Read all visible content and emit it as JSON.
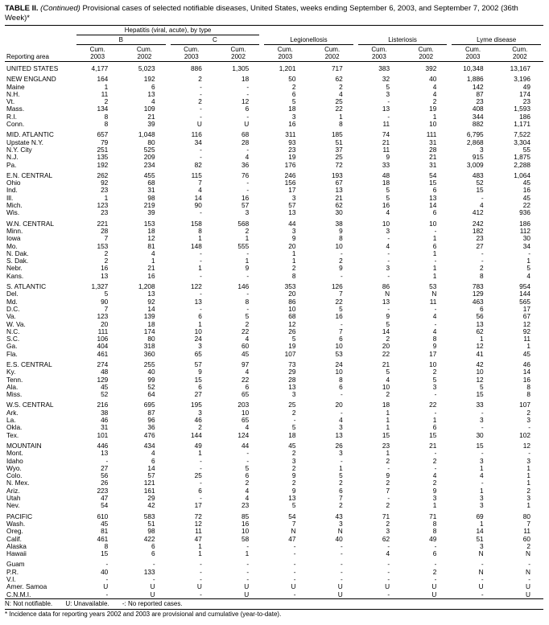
{
  "title": {
    "prefix": "TABLE II.",
    "continued": " (Continued)",
    "rest": " Provisional cases of selected notifiable diseases, United States, weeks ending September 6, 2003, and September 7, 2002 (36th Week)*"
  },
  "table": {
    "reporting_area_label": "Reporting area",
    "groups": {
      "hepatitis": "Hepatitis (viral, acute), by type",
      "hep_b": "B",
      "hep_c": "C",
      "legionellosis": "Legionellosis",
      "listeriosis": "Listeriosis",
      "lyme": "Lyme disease"
    },
    "columns": [
      {
        "line1": "Cum.",
        "line2": "2003"
      },
      {
        "line1": "Cum.",
        "line2": "2002"
      },
      {
        "line1": "Cum.",
        "line2": "2003"
      },
      {
        "line1": "Cum.",
        "line2": "2002"
      },
      {
        "line1": "Cum.",
        "line2": "2003"
      },
      {
        "line1": "Cum.",
        "line2": "2002"
      },
      {
        "line1": "Cum.",
        "line2": "2003"
      },
      {
        "line1": "Cum.",
        "line2": "2002"
      },
      {
        "line1": "Cum.",
        "line2": "2003"
      },
      {
        "line1": "Cum.",
        "line2": "2002"
      }
    ],
    "rows": [
      {
        "area": "UNITED STATES",
        "gap": true,
        "values": [
          "4,177",
          "5,023",
          "886",
          "1,305",
          "1,201",
          "717",
          "383",
          "392",
          "10,348",
          "13,167"
        ]
      },
      {
        "area": "NEW ENGLAND",
        "gap": true,
        "values": [
          "164",
          "192",
          "2",
          "18",
          "50",
          "62",
          "32",
          "40",
          "1,886",
          "3,196"
        ]
      },
      {
        "area": "Maine",
        "values": [
          "1",
          "6",
          "-",
          "-",
          "2",
          "2",
          "5",
          "4",
          "142",
          "49"
        ]
      },
      {
        "area": "N.H.",
        "values": [
          "11",
          "13",
          "-",
          "-",
          "6",
          "4",
          "3",
          "4",
          "87",
          "174"
        ]
      },
      {
        "area": "Vt.",
        "values": [
          "2",
          "4",
          "2",
          "12",
          "5",
          "25",
          "-",
          "2",
          "23",
          "23"
        ]
      },
      {
        "area": "Mass.",
        "values": [
          "134",
          "109",
          "-",
          "6",
          "18",
          "22",
          "13",
          "19",
          "408",
          "1,593"
        ]
      },
      {
        "area": "R.I.",
        "values": [
          "8",
          "21",
          "-",
          "-",
          "3",
          "1",
          "-",
          "1",
          "344",
          "186"
        ]
      },
      {
        "area": "Conn.",
        "values": [
          "8",
          "39",
          "U",
          "U",
          "16",
          "8",
          "11",
          "10",
          "882",
          "1,171"
        ]
      },
      {
        "area": "MID. ATLANTIC",
        "gap": true,
        "values": [
          "657",
          "1,048",
          "116",
          "68",
          "311",
          "185",
          "74",
          "111",
          "6,795",
          "7,522"
        ]
      },
      {
        "area": "Upstate N.Y.",
        "values": [
          "79",
          "80",
          "34",
          "28",
          "93",
          "51",
          "21",
          "31",
          "2,868",
          "3,304"
        ]
      },
      {
        "area": "N.Y. City",
        "values": [
          "251",
          "525",
          "-",
          "-",
          "23",
          "37",
          "11",
          "28",
          "3",
          "55"
        ]
      },
      {
        "area": "N.J.",
        "values": [
          "135",
          "209",
          "-",
          "4",
          "19",
          "25",
          "9",
          "21",
          "915",
          "1,875"
        ]
      },
      {
        "area": "Pa.",
        "values": [
          "192",
          "234",
          "82",
          "36",
          "176",
          "72",
          "33",
          "31",
          "3,009",
          "2,288"
        ]
      },
      {
        "area": "E.N. CENTRAL",
        "gap": true,
        "values": [
          "262",
          "455",
          "115",
          "76",
          "246",
          "193",
          "48",
          "54",
          "483",
          "1,064"
        ]
      },
      {
        "area": "Ohio",
        "values": [
          "92",
          "68",
          "7",
          "-",
          "156",
          "67",
          "18",
          "15",
          "52",
          "45"
        ]
      },
      {
        "area": "Ind.",
        "values": [
          "23",
          "31",
          "4",
          "-",
          "17",
          "13",
          "5",
          "6",
          "15",
          "16"
        ]
      },
      {
        "area": "Ill.",
        "values": [
          "1",
          "98",
          "14",
          "16",
          "3",
          "21",
          "5",
          "13",
          "-",
          "45"
        ]
      },
      {
        "area": "Mich.",
        "values": [
          "123",
          "219",
          "90",
          "57",
          "57",
          "62",
          "16",
          "14",
          "4",
          "22"
        ]
      },
      {
        "area": "Wis.",
        "values": [
          "23",
          "39",
          "-",
          "3",
          "13",
          "30",
          "4",
          "6",
          "412",
          "936"
        ]
      },
      {
        "area": "W.N. CENTRAL",
        "gap": true,
        "values": [
          "221",
          "153",
          "158",
          "568",
          "44",
          "38",
          "10",
          "10",
          "242",
          "186"
        ]
      },
      {
        "area": "Minn.",
        "values": [
          "28",
          "18",
          "8",
          "2",
          "3",
          "9",
          "3",
          "-",
          "182",
          "112"
        ]
      },
      {
        "area": "Iowa",
        "values": [
          "7",
          "12",
          "1",
          "1",
          "9",
          "8",
          "-",
          "1",
          "23",
          "30"
        ]
      },
      {
        "area": "Mo.",
        "values": [
          "153",
          "81",
          "148",
          "555",
          "20",
          "10",
          "4",
          "6",
          "27",
          "34"
        ]
      },
      {
        "area": "N. Dak.",
        "values": [
          "2",
          "4",
          "-",
          "-",
          "1",
          "-",
          "-",
          "1",
          "-",
          "-"
        ]
      },
      {
        "area": "S. Dak.",
        "values": [
          "2",
          "1",
          "-",
          "1",
          "1",
          "2",
          "-",
          "-",
          "-",
          "1"
        ]
      },
      {
        "area": "Nebr.",
        "values": [
          "16",
          "21",
          "1",
          "9",
          "2",
          "9",
          "3",
          "1",
          "2",
          "5"
        ]
      },
      {
        "area": "Kans.",
        "values": [
          "13",
          "16",
          "-",
          "-",
          "8",
          "-",
          "-",
          "1",
          "8",
          "4"
        ]
      },
      {
        "area": "S. ATLANTIC",
        "gap": true,
        "values": [
          "1,327",
          "1,208",
          "122",
          "146",
          "353",
          "126",
          "86",
          "53",
          "783",
          "954"
        ]
      },
      {
        "area": "Del.",
        "values": [
          "5",
          "13",
          "-",
          "-",
          "20",
          "7",
          "N",
          "N",
          "129",
          "144"
        ]
      },
      {
        "area": "Md.",
        "values": [
          "90",
          "92",
          "13",
          "8",
          "86",
          "22",
          "13",
          "11",
          "463",
          "565"
        ]
      },
      {
        "area": "D.C.",
        "values": [
          "7",
          "14",
          "-",
          "-",
          "10",
          "5",
          "-",
          "-",
          "6",
          "17"
        ]
      },
      {
        "area": "Va.",
        "values": [
          "123",
          "139",
          "6",
          "5",
          "68",
          "16",
          "9",
          "4",
          "56",
          "67"
        ]
      },
      {
        "area": "W. Va.",
        "values": [
          "20",
          "18",
          "1",
          "2",
          "12",
          "-",
          "5",
          "-",
          "13",
          "12"
        ]
      },
      {
        "area": "N.C.",
        "values": [
          "111",
          "174",
          "10",
          "22",
          "26",
          "7",
          "14",
          "4",
          "62",
          "92"
        ]
      },
      {
        "area": "S.C.",
        "values": [
          "106",
          "80",
          "24",
          "4",
          "5",
          "6",
          "2",
          "8",
          "1",
          "11"
        ]
      },
      {
        "area": "Ga.",
        "values": [
          "404",
          "318",
          "3",
          "60",
          "19",
          "10",
          "20",
          "9",
          "12",
          "1"
        ]
      },
      {
        "area": "Fla.",
        "values": [
          "461",
          "360",
          "65",
          "45",
          "107",
          "53",
          "22",
          "17",
          "41",
          "45"
        ]
      },
      {
        "area": "E.S. CENTRAL",
        "gap": true,
        "values": [
          "274",
          "255",
          "57",
          "97",
          "73",
          "24",
          "21",
          "10",
          "42",
          "46"
        ]
      },
      {
        "area": "Ky.",
        "values": [
          "48",
          "40",
          "9",
          "4",
          "29",
          "10",
          "5",
          "2",
          "10",
          "14"
        ]
      },
      {
        "area": "Tenn.",
        "values": [
          "129",
          "99",
          "15",
          "22",
          "28",
          "8",
          "4",
          "5",
          "12",
          "16"
        ]
      },
      {
        "area": "Ala.",
        "values": [
          "45",
          "52",
          "6",
          "6",
          "13",
          "6",
          "10",
          "3",
          "5",
          "8"
        ]
      },
      {
        "area": "Miss.",
        "values": [
          "52",
          "64",
          "27",
          "65",
          "3",
          "-",
          "2",
          "-",
          "15",
          "8"
        ]
      },
      {
        "area": "W.S. CENTRAL",
        "gap": true,
        "values": [
          "216",
          "695",
          "195",
          "203",
          "25",
          "20",
          "18",
          "22",
          "33",
          "107"
        ]
      },
      {
        "area": "Ark.",
        "values": [
          "38",
          "87",
          "3",
          "10",
          "2",
          "-",
          "1",
          "-",
          "-",
          "2"
        ]
      },
      {
        "area": "La.",
        "values": [
          "46",
          "96",
          "46",
          "65",
          "-",
          "4",
          "1",
          "1",
          "3",
          "3"
        ]
      },
      {
        "area": "Okla.",
        "values": [
          "31",
          "36",
          "2",
          "4",
          "5",
          "3",
          "1",
          "6",
          "-",
          "-"
        ]
      },
      {
        "area": "Tex.",
        "values": [
          "101",
          "476",
          "144",
          "124",
          "18",
          "13",
          "15",
          "15",
          "30",
          "102"
        ]
      },
      {
        "area": "MOUNTAIN",
        "gap": true,
        "values": [
          "446",
          "434",
          "49",
          "44",
          "45",
          "26",
          "23",
          "21",
          "15",
          "12"
        ]
      },
      {
        "area": "Mont.",
        "values": [
          "13",
          "4",
          "1",
          "-",
          "2",
          "3",
          "1",
          "-",
          "-",
          "-"
        ]
      },
      {
        "area": "Idaho",
        "values": [
          "-",
          "6",
          "-",
          "-",
          "3",
          "-",
          "2",
          "2",
          "3",
          "3"
        ]
      },
      {
        "area": "Wyo.",
        "values": [
          "27",
          "14",
          "-",
          "5",
          "2",
          "1",
          "-",
          "-",
          "1",
          "1"
        ]
      },
      {
        "area": "Colo.",
        "values": [
          "56",
          "57",
          "25",
          "6",
          "9",
          "5",
          "9",
          "4",
          "4",
          "1"
        ]
      },
      {
        "area": "N. Mex.",
        "values": [
          "26",
          "121",
          "-",
          "2",
          "2",
          "2",
          "2",
          "2",
          "-",
          "1"
        ]
      },
      {
        "area": "Ariz.",
        "values": [
          "223",
          "161",
          "6",
          "4",
          "9",
          "6",
          "7",
          "9",
          "1",
          "2"
        ]
      },
      {
        "area": "Utah",
        "values": [
          "47",
          "29",
          "-",
          "4",
          "13",
          "7",
          "-",
          "3",
          "3",
          "3"
        ]
      },
      {
        "area": "Nev.",
        "values": [
          "54",
          "42",
          "17",
          "23",
          "5",
          "2",
          "2",
          "1",
          "3",
          "1"
        ]
      },
      {
        "area": "PACIFIC",
        "gap": true,
        "values": [
          "610",
          "583",
          "72",
          "85",
          "54",
          "43",
          "71",
          "71",
          "69",
          "80"
        ]
      },
      {
        "area": "Wash.",
        "values": [
          "45",
          "51",
          "12",
          "16",
          "7",
          "3",
          "2",
          "8",
          "1",
          "7"
        ]
      },
      {
        "area": "Oreg.",
        "values": [
          "81",
          "98",
          "11",
          "10",
          "N",
          "N",
          "3",
          "8",
          "14",
          "11"
        ]
      },
      {
        "area": "Calif.",
        "values": [
          "461",
          "422",
          "47",
          "58",
          "47",
          "40",
          "62",
          "49",
          "51",
          "60"
        ]
      },
      {
        "area": "Alaska",
        "values": [
          "8",
          "6",
          "1",
          "-",
          "-",
          "-",
          "-",
          "-",
          "3",
          "2"
        ]
      },
      {
        "area": "Hawaii",
        "values": [
          "15",
          "6",
          "1",
          "1",
          "-",
          "-",
          "4",
          "6",
          "N",
          "N"
        ]
      },
      {
        "area": "Guam",
        "gap": true,
        "values": [
          "-",
          "-",
          "-",
          "-",
          "-",
          "-",
          "-",
          "-",
          "-",
          "-"
        ]
      },
      {
        "area": "P.R.",
        "values": [
          "40",
          "133",
          "-",
          "-",
          "-",
          "-",
          "-",
          "2",
          "N",
          "N"
        ]
      },
      {
        "area": "V.I.",
        "values": [
          "-",
          "-",
          "-",
          "-",
          "-",
          "-",
          "-",
          "-",
          "-",
          "-"
        ]
      },
      {
        "area": "Amer. Samoa",
        "values": [
          "U",
          "U",
          "U",
          "U",
          "U",
          "U",
          "U",
          "U",
          "U",
          "U"
        ]
      },
      {
        "area": "C.N.M.I.",
        "values": [
          "-",
          "U",
          "-",
          "U",
          "-",
          "U",
          "-",
          "U",
          "-",
          "U"
        ]
      }
    ]
  },
  "footnotes": {
    "legend": [
      "N: Not notifiable.",
      "U: Unavailable.",
      "-: No reported cases."
    ],
    "note": "* Incidence data for reporting years 2002 and 2003 are provisional and cumulative (year-to-date)."
  }
}
